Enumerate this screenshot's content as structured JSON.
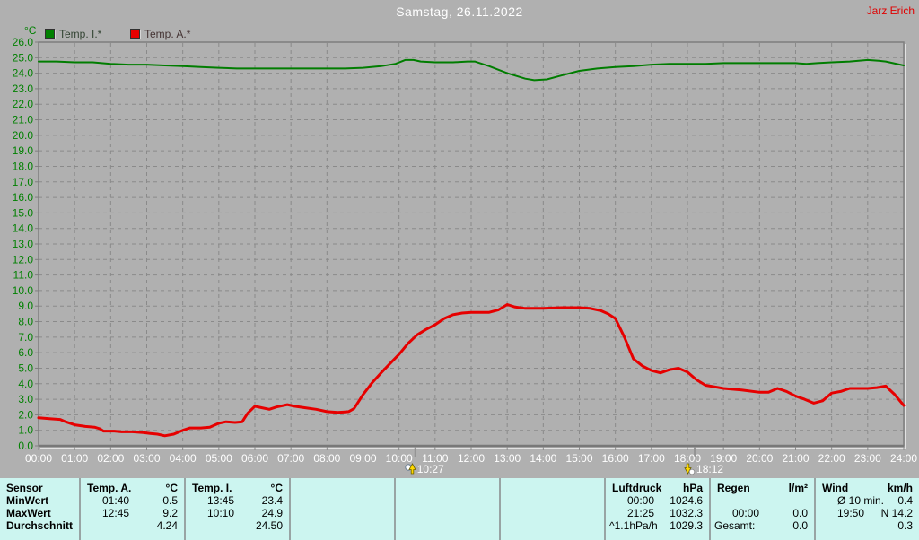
{
  "header": {
    "title": "Samstag, 26.11.2022",
    "author": "Jarz Erich"
  },
  "legend": {
    "unit": "°C",
    "series": [
      {
        "label": "Temp. I.*",
        "swatch_color": "#008000"
      },
      {
        "label": "Temp. A.*",
        "swatch_color": "#e60000"
      }
    ]
  },
  "chart_data": {
    "type": "line",
    "title": "Samstag, 26.11.2022",
    "xlabel": "",
    "ylabel": "°C",
    "ylim": [
      0.0,
      26.0
    ],
    "y_tick_step": 1.0,
    "grid": true,
    "legend_position": "top-left",
    "y_ticks": [
      "26.0",
      "25.0",
      "24.0",
      "23.0",
      "22.0",
      "21.0",
      "20.0",
      "19.0",
      "18.0",
      "17.0",
      "16.0",
      "15.0",
      "14.0",
      "13.0",
      "12.0",
      "11.0",
      "10.0",
      "9.0",
      "8.0",
      "7.0",
      "6.0",
      "5.0",
      "4.0",
      "3.0",
      "2.0",
      "1.0",
      "0.0"
    ],
    "x_ticks": [
      "00:00",
      "01:00",
      "02:00",
      "03:00",
      "04:00",
      "05:00",
      "06:00",
      "07:00",
      "08:00",
      "09:00",
      "10:00",
      "11:00",
      "12:00",
      "13:00",
      "14:00",
      "15:00",
      "16:00",
      "17:00",
      "18:00",
      "19:00",
      "20:00",
      "21:00",
      "22:00",
      "23:00",
      "24:00"
    ],
    "series": [
      {
        "name": "Temp. I.*",
        "color": "#007d00",
        "width": 2,
        "points": [
          [
            0,
            24.75
          ],
          [
            0.5,
            24.75
          ],
          [
            1,
            24.7
          ],
          [
            1.5,
            24.7
          ],
          [
            2,
            24.6
          ],
          [
            2.5,
            24.55
          ],
          [
            3,
            24.55
          ],
          [
            3.5,
            24.5
          ],
          [
            4,
            24.45
          ],
          [
            4.5,
            24.4
          ],
          [
            5,
            24.35
          ],
          [
            5.5,
            24.3
          ],
          [
            6.5,
            24.3
          ],
          [
            7.5,
            24.3
          ],
          [
            8.5,
            24.3
          ],
          [
            9,
            24.35
          ],
          [
            9.5,
            24.45
          ],
          [
            9.9,
            24.6
          ],
          [
            10.17,
            24.85
          ],
          [
            10.4,
            24.85
          ],
          [
            10.6,
            24.75
          ],
          [
            11,
            24.7
          ],
          [
            11.5,
            24.7
          ],
          [
            11.9,
            24.75
          ],
          [
            12.1,
            24.75
          ],
          [
            12.5,
            24.45
          ],
          [
            13,
            24.0
          ],
          [
            13.5,
            23.65
          ],
          [
            13.75,
            23.55
          ],
          [
            14.1,
            23.6
          ],
          [
            14.5,
            23.85
          ],
          [
            15,
            24.15
          ],
          [
            15.5,
            24.3
          ],
          [
            16,
            24.4
          ],
          [
            16.5,
            24.45
          ],
          [
            17,
            24.55
          ],
          [
            17.5,
            24.6
          ],
          [
            18.5,
            24.6
          ],
          [
            19,
            24.65
          ],
          [
            20,
            24.65
          ],
          [
            21,
            24.65
          ],
          [
            21.3,
            24.6
          ],
          [
            21.6,
            24.65
          ],
          [
            22,
            24.7
          ],
          [
            22.5,
            24.75
          ],
          [
            23,
            24.85
          ],
          [
            23.3,
            24.8
          ],
          [
            23.5,
            24.75
          ],
          [
            24,
            24.5
          ]
        ]
      },
      {
        "name": "Temp. A.*",
        "color": "#e60000",
        "width": 3,
        "points": [
          [
            0,
            1.8
          ],
          [
            0.3,
            1.75
          ],
          [
            0.6,
            1.7
          ],
          [
            0.75,
            1.55
          ],
          [
            1,
            1.35
          ],
          [
            1.3,
            1.25
          ],
          [
            1.55,
            1.2
          ],
          [
            1.7,
            1.1
          ],
          [
            1.8,
            0.95
          ],
          [
            2.1,
            0.95
          ],
          [
            2.3,
            0.9
          ],
          [
            2.6,
            0.9
          ],
          [
            2.9,
            0.85
          ],
          [
            3.1,
            0.8
          ],
          [
            3.3,
            0.75
          ],
          [
            3.5,
            0.65
          ],
          [
            3.75,
            0.75
          ],
          [
            4,
            1.0
          ],
          [
            4.2,
            1.15
          ],
          [
            4.5,
            1.15
          ],
          [
            4.75,
            1.2
          ],
          [
            5,
            1.45
          ],
          [
            5.2,
            1.55
          ],
          [
            5.45,
            1.5
          ],
          [
            5.65,
            1.55
          ],
          [
            5.8,
            2.1
          ],
          [
            6,
            2.55
          ],
          [
            6.2,
            2.45
          ],
          [
            6.4,
            2.35
          ],
          [
            6.6,
            2.5
          ],
          [
            6.9,
            2.65
          ],
          [
            7.1,
            2.55
          ],
          [
            7.4,
            2.45
          ],
          [
            7.7,
            2.35
          ],
          [
            8,
            2.2
          ],
          [
            8.3,
            2.15
          ],
          [
            8.6,
            2.2
          ],
          [
            8.75,
            2.4
          ],
          [
            9,
            3.3
          ],
          [
            9.25,
            4.05
          ],
          [
            9.5,
            4.7
          ],
          [
            9.75,
            5.3
          ],
          [
            10,
            5.9
          ],
          [
            10.25,
            6.6
          ],
          [
            10.5,
            7.15
          ],
          [
            10.75,
            7.5
          ],
          [
            11,
            7.8
          ],
          [
            11.25,
            8.2
          ],
          [
            11.5,
            8.45
          ],
          [
            11.75,
            8.55
          ],
          [
            12,
            8.6
          ],
          [
            12.5,
            8.6
          ],
          [
            12.75,
            8.75
          ],
          [
            13,
            9.1
          ],
          [
            13.2,
            8.95
          ],
          [
            13.5,
            8.85
          ],
          [
            14,
            8.85
          ],
          [
            14.5,
            8.9
          ],
          [
            15,
            8.9
          ],
          [
            15.3,
            8.85
          ],
          [
            15.6,
            8.7
          ],
          [
            15.8,
            8.5
          ],
          [
            16,
            8.2
          ],
          [
            16.25,
            7.0
          ],
          [
            16.5,
            5.6
          ],
          [
            16.75,
            5.15
          ],
          [
            17,
            4.85
          ],
          [
            17.25,
            4.7
          ],
          [
            17.5,
            4.9
          ],
          [
            17.75,
            5.0
          ],
          [
            18,
            4.75
          ],
          [
            18.25,
            4.25
          ],
          [
            18.5,
            3.9
          ],
          [
            18.75,
            3.8
          ],
          [
            19,
            3.7
          ],
          [
            19.5,
            3.6
          ],
          [
            20,
            3.45
          ],
          [
            20.25,
            3.45
          ],
          [
            20.5,
            3.7
          ],
          [
            20.75,
            3.5
          ],
          [
            21,
            3.2
          ],
          [
            21.25,
            3.0
          ],
          [
            21.5,
            2.75
          ],
          [
            21.75,
            2.9
          ],
          [
            22,
            3.4
          ],
          [
            22.25,
            3.5
          ],
          [
            22.5,
            3.7
          ],
          [
            23,
            3.7
          ],
          [
            23.25,
            3.75
          ],
          [
            23.5,
            3.85
          ],
          [
            23.75,
            3.3
          ],
          [
            24,
            2.6
          ]
        ]
      }
    ],
    "markers": [
      {
        "time": "10:27",
        "hour": 10.45,
        "icon": "sunrise-icon"
      },
      {
        "time": "18:12",
        "hour": 18.2,
        "icon": "sunset-icon"
      }
    ]
  },
  "table": {
    "row_labels": [
      "Sensor",
      "MinWert",
      "MaxWert",
      "Durchschnitt"
    ],
    "columns": [
      {
        "name": "Temp. A.",
        "unit": "°C",
        "rows": [
          [
            "01:40",
            "0.5"
          ],
          [
            "12:45",
            "9.2"
          ],
          [
            "",
            "4.24"
          ]
        ]
      },
      {
        "name": "Temp. I.",
        "unit": "°C",
        "rows": [
          [
            "13:45",
            "23.4"
          ],
          [
            "10:10",
            "24.9"
          ],
          [
            "",
            "24.50"
          ]
        ]
      },
      {
        "name": "",
        "unit": "",
        "rows": [
          [
            "",
            ""
          ],
          [
            "",
            ""
          ],
          [
            "",
            ""
          ]
        ]
      },
      {
        "name": "",
        "unit": "",
        "rows": [
          [
            "",
            ""
          ],
          [
            "",
            ""
          ],
          [
            "",
            ""
          ]
        ]
      },
      {
        "name": "",
        "unit": "",
        "rows": [
          [
            "",
            ""
          ],
          [
            "",
            ""
          ],
          [
            "",
            ""
          ]
        ]
      },
      {
        "name": "Luftdruck",
        "unit": "hPa",
        "rows": [
          [
            "00:00",
            "1024.6"
          ],
          [
            "21:25",
            "1032.3"
          ],
          [
            "^1.1hPa/h",
            "1029.3"
          ]
        ]
      },
      {
        "name": "Regen",
        "unit": "l/m²",
        "rows": [
          [
            "",
            ""
          ],
          [
            "00:00",
            "0.0"
          ],
          [
            "Gesamt:",
            "0.0"
          ]
        ]
      },
      {
        "name": "Wind",
        "unit": "km/h",
        "rows": [
          [
            "Ø 10 min.",
            "0.4"
          ],
          [
            "19:50",
            "N 14.2"
          ],
          [
            "",
            "0.3"
          ]
        ]
      }
    ]
  }
}
